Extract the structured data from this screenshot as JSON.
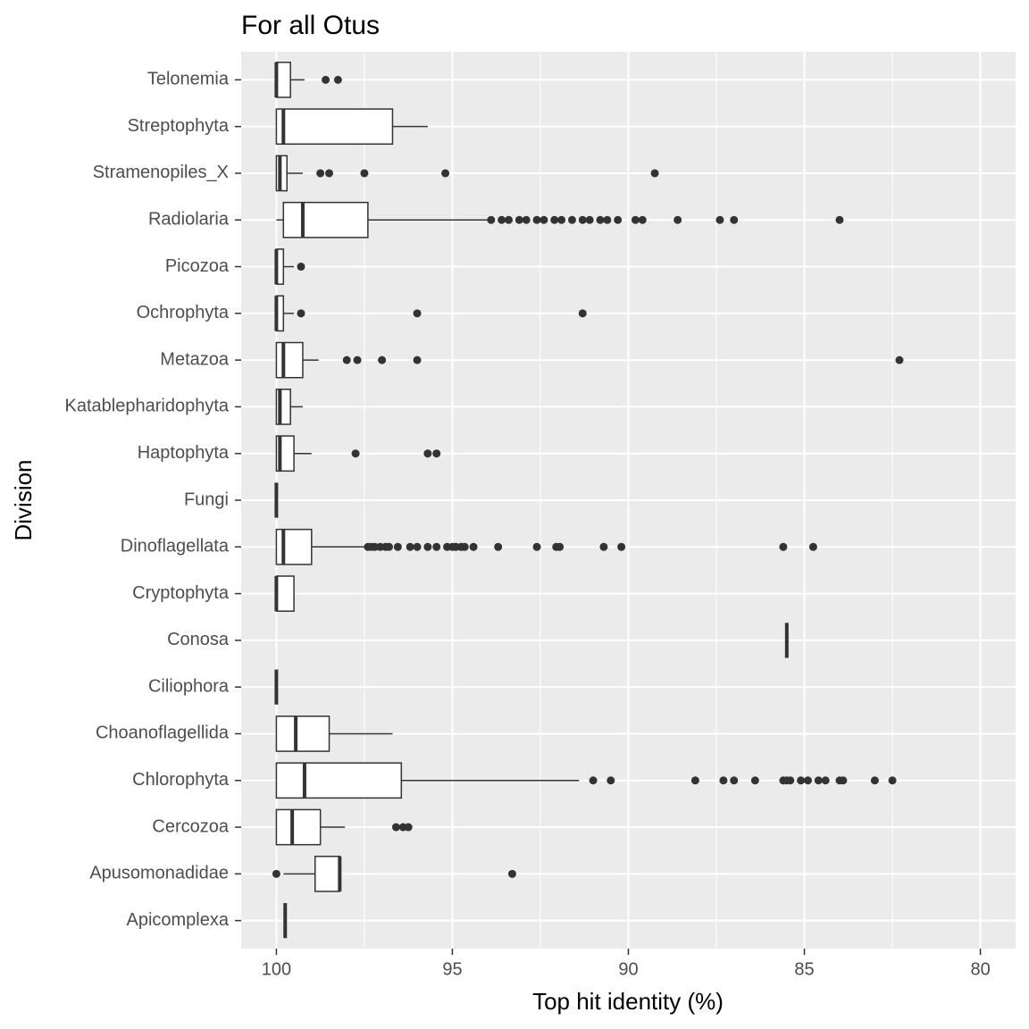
{
  "chart_data": {
    "type": "boxplot",
    "title": "For all Otus",
    "x_label": "Top hit identity (%)",
    "y_label": "Division",
    "xlim": [
      101,
      79
    ],
    "xticks": [
      100,
      95,
      90,
      85,
      80
    ],
    "grid": true,
    "categories": [
      "Telonemia",
      "Streptophyta",
      "Stramenopiles_X",
      "Radiolaria",
      "Picozoa",
      "Ochrophyta",
      "Metazoa",
      "Katablepharidophyta",
      "Haptophyta",
      "Fungi",
      "Dinoflagellata",
      "Cryptophyta",
      "Conosa",
      "Ciliophora",
      "Choanoflagellida",
      "Chlorophyta",
      "Cercozoa",
      "Apusomonadidae",
      "Apicomplexa"
    ],
    "boxes": [
      {
        "whisker_low": 99.2,
        "q1": 99.6,
        "median": 100,
        "q3": 100,
        "whisker_high": 100,
        "outliers": [
          98.6,
          98.25
        ]
      },
      {
        "whisker_low": 95.7,
        "q1": 96.7,
        "median": 99.8,
        "q3": 100,
        "whisker_high": 100,
        "outliers": []
      },
      {
        "whisker_low": 99.25,
        "q1": 99.7,
        "median": 99.9,
        "q3": 100,
        "whisker_high": 100,
        "outliers": [
          98.75,
          98.5,
          97.5,
          95.2,
          89.25
        ]
      },
      {
        "whisker_low": 93.95,
        "q1": 97.4,
        "median": 99.25,
        "q3": 99.8,
        "whisker_high": 100,
        "outliers": [
          93.9,
          93.6,
          93.4,
          93.1,
          92.9,
          92.6,
          92.4,
          92.1,
          91.9,
          91.6,
          91.3,
          91.1,
          90.8,
          90.6,
          90.3,
          89.8,
          89.6,
          88.6,
          87.4,
          87.0,
          84.0
        ]
      },
      {
        "whisker_low": 99.5,
        "q1": 99.8,
        "median": 100,
        "q3": 100,
        "whisker_high": 100,
        "outliers": [
          99.3
        ]
      },
      {
        "whisker_low": 99.5,
        "q1": 99.8,
        "median": 100,
        "q3": 100,
        "whisker_high": 100,
        "outliers": [
          99.3,
          96.0,
          91.3
        ]
      },
      {
        "whisker_low": 98.8,
        "q1": 99.25,
        "median": 99.8,
        "q3": 100,
        "whisker_high": 100,
        "outliers": [
          98.0,
          97.7,
          97.0,
          96.0,
          82.3
        ]
      },
      {
        "whisker_low": 99.25,
        "q1": 99.6,
        "median": 99.9,
        "q3": 100,
        "whisker_high": 100,
        "outliers": []
      },
      {
        "whisker_low": 99.0,
        "q1": 99.5,
        "median": 99.9,
        "q3": 100,
        "whisker_high": 100,
        "outliers": [
          97.75,
          95.7,
          95.45
        ]
      },
      {
        "whisker_low": 100,
        "q1": 100,
        "median": 100,
        "q3": 100,
        "whisker_high": 100,
        "outliers": []
      },
      {
        "whisker_low": 97.5,
        "q1": 99.0,
        "median": 99.8,
        "q3": 100,
        "whisker_high": 100,
        "outliers": [
          97.4,
          97.3,
          97.2,
          97.05,
          96.9,
          96.8,
          96.55,
          96.2,
          96.0,
          95.7,
          95.45,
          95.15,
          95.0,
          94.9,
          94.75,
          94.65,
          94.4,
          93.7,
          92.6,
          92.05,
          91.95,
          90.7,
          90.2,
          85.6,
          84.75
        ]
      },
      {
        "whisker_low": 99.5,
        "q1": 99.5,
        "median": 100,
        "q3": 100,
        "whisker_high": 100,
        "outliers": []
      },
      {
        "whisker_low": 85.5,
        "q1": 85.5,
        "median": 85.5,
        "q3": 85.5,
        "whisker_high": 85.5,
        "outliers": []
      },
      {
        "whisker_low": 100,
        "q1": 100,
        "median": 100,
        "q3": 100,
        "whisker_high": 100,
        "outliers": []
      },
      {
        "whisker_low": 96.7,
        "q1": 98.5,
        "median": 99.45,
        "q3": 100,
        "whisker_high": 100,
        "outliers": []
      },
      {
        "whisker_low": 91.4,
        "q1": 96.45,
        "median": 99.2,
        "q3": 100,
        "whisker_high": 100,
        "outliers": [
          91.0,
          90.5,
          88.1,
          87.3,
          87.0,
          86.4,
          85.6,
          85.5,
          85.4,
          85.1,
          84.9,
          84.6,
          84.4,
          84.0,
          83.9,
          83.0,
          82.5
        ]
      },
      {
        "whisker_low": 98.05,
        "q1": 98.75,
        "median": 99.55,
        "q3": 100,
        "whisker_high": 100,
        "outliers": [
          96.6,
          96.4,
          96.25
        ]
      },
      {
        "whisker_low": 98.2,
        "q1": 98.2,
        "median": 98.2,
        "q3": 98.9,
        "whisker_high": 99.8,
        "outliers": [
          100,
          93.3
        ]
      },
      {
        "whisker_low": 99.75,
        "q1": 99.75,
        "median": 99.75,
        "q3": 99.75,
        "whisker_high": 99.75,
        "outliers": []
      }
    ]
  }
}
